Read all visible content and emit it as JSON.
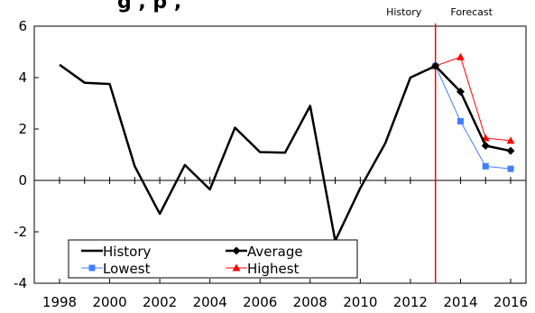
{
  "chart_data": {
    "type": "line",
    "title_fragment": "g   , p   ,",
    "xlim": [
      1998,
      2016
    ],
    "ylim": [
      -4,
      6
    ],
    "x_ticks": [
      1998,
      2000,
      2002,
      2004,
      2006,
      2008,
      2010,
      2012,
      2014,
      2016
    ],
    "y_ticks": [
      -4,
      -2,
      0,
      2,
      4,
      6
    ],
    "forecast_divider_x": 2013,
    "region_labels": {
      "history": "History",
      "forecast": "Forecast"
    },
    "legend_position": "bottom-left",
    "colors": {
      "history": "#000000",
      "average": "#000000",
      "lowest": "#3f7fff",
      "highest": "#ff0000",
      "divider": "#ff0000"
    },
    "series": [
      {
        "name": "History",
        "marker": "none",
        "x": [
          1998,
          1999,
          2000,
          2001,
          2002,
          2003,
          2004,
          2005,
          2006,
          2007,
          2008,
          2009,
          2010,
          2011,
          2012,
          2013
        ],
        "values": [
          4.5,
          3.8,
          3.75,
          0.55,
          -1.3,
          0.6,
          -0.35,
          2.05,
          1.1,
          1.08,
          2.9,
          -2.35,
          -0.3,
          1.45,
          4.0,
          4.45
        ]
      },
      {
        "name": "Average",
        "marker": "diamond",
        "x": [
          2013,
          2014,
          2015,
          2016
        ],
        "values": [
          4.45,
          3.45,
          1.35,
          1.15
        ]
      },
      {
        "name": "Lowest",
        "marker": "square",
        "x": [
          2013,
          2014,
          2015,
          2016
        ],
        "values": [
          4.45,
          2.3,
          0.55,
          0.45
        ]
      },
      {
        "name": "Highest",
        "marker": "triangle",
        "x": [
          2013,
          2014,
          2015,
          2016
        ],
        "values": [
          4.45,
          4.8,
          1.65,
          1.55
        ]
      }
    ]
  }
}
